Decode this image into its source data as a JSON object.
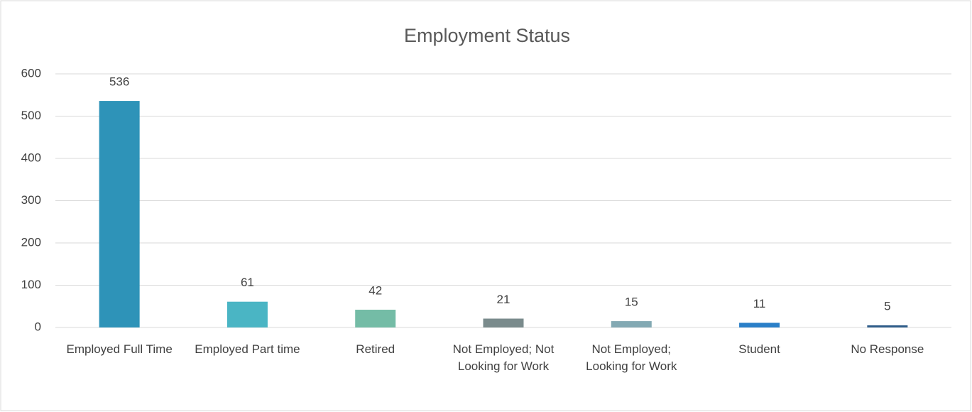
{
  "chart_data": {
    "type": "bar",
    "title": "Employment Status",
    "categories": [
      "Employed Full Time",
      "Employed Part time",
      "Retired",
      "Not Employed; Not Looking for Work",
      "Not Employed; Looking for Work",
      "Student",
      "No Response"
    ],
    "values": [
      536,
      61,
      42,
      21,
      15,
      11,
      5
    ],
    "colors": [
      "#2e93b8",
      "#4ab5c4",
      "#74bca6",
      "#7a8b8c",
      "#83a9b3",
      "#2a7fc8",
      "#2f5d8a"
    ],
    "ylim": [
      0,
      600
    ],
    "yticks": [
      0,
      100,
      200,
      300,
      400,
      500,
      600
    ],
    "grid": true
  }
}
